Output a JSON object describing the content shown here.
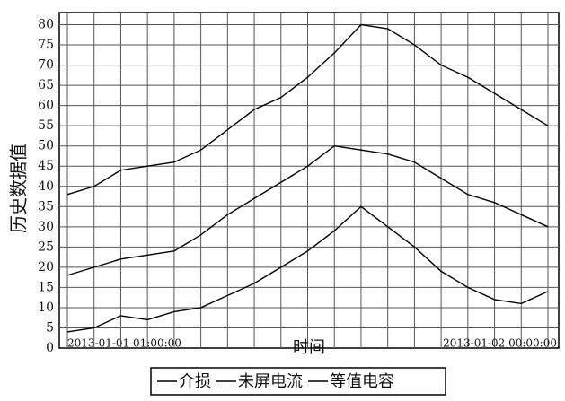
{
  "chart_data": {
    "type": "line",
    "y_label": "历史数据值",
    "x_label": "时间",
    "categories": [
      "2013-01-01 01:00:00",
      null,
      null,
      null,
      null,
      null,
      null,
      null,
      null,
      null,
      null,
      null,
      null,
      null,
      null,
      null,
      null,
      null,
      "2013-01-02 00:00:00"
    ],
    "series": [
      {
        "name": "介损",
        "color": "#000000",
        "values": [
          38,
          40,
          44,
          45,
          46,
          49,
          54,
          59,
          62,
          67,
          73,
          80,
          79,
          75,
          70,
          67,
          63,
          59,
          55
        ]
      },
      {
        "name": "未屏电流",
        "color": "#000000",
        "values": [
          18,
          20,
          22,
          23,
          24,
          28,
          33,
          37,
          41,
          45,
          50,
          49,
          48,
          46,
          42,
          38,
          36,
          33,
          30
        ]
      },
      {
        "name": "等值电容",
        "color": "#000000",
        "values": [
          4,
          5,
          8,
          7,
          9,
          10,
          13,
          16,
          20,
          24,
          29,
          35,
          30,
          25,
          19,
          15,
          12,
          11,
          14
        ]
      }
    ],
    "ylim": [
      0,
      83
    ],
    "yticks": [
      0,
      5,
      10,
      15,
      20,
      25,
      30,
      35,
      40,
      45,
      50,
      55,
      60,
      65,
      70,
      75,
      80
    ],
    "grid": true
  }
}
